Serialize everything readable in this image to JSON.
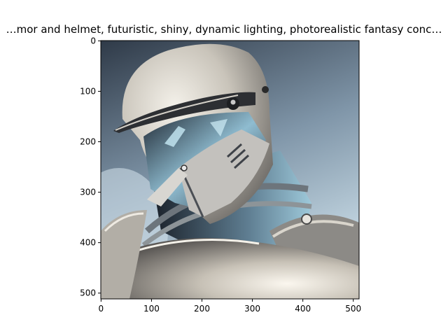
{
  "figure": {
    "title": "…mor and helmet, futuristic, shiny, dynamic lighting, photorealistic fantasy conc…",
    "image_subject": "armored-knight-helmet-illustration",
    "x_ticks": [
      "0",
      "100",
      "200",
      "300",
      "400",
      "500"
    ],
    "y_ticks": [
      "0",
      "100",
      "200",
      "300",
      "400",
      "500"
    ],
    "x_range": [
      0,
      512
    ],
    "y_range": [
      0,
      512
    ]
  },
  "colors": {
    "axes": "#000000",
    "bg_sky_top": "#34404e",
    "bg_sky_bottom": "#b9cfdb",
    "armor_light": "#e8e4dc",
    "armor_mid": "#a9a49c",
    "armor_dark": "#3a3f47",
    "visor_blue": "#9fd2e6"
  }
}
